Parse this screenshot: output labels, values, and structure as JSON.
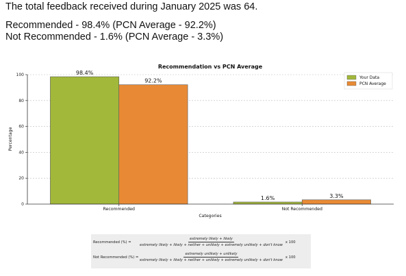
{
  "summary": {
    "line1": "The total feedback received during January 2025 was 64.",
    "line2": "Recommended - 98.4%  (PCN Average - 92.2%)",
    "line3": "Not Recommended - 1.6%  (PCN Average - 3.3%)"
  },
  "chart_data": {
    "type": "bar",
    "title": "Recommendation vs PCN Average",
    "xlabel": "Categories",
    "ylabel": "Percentage",
    "categories": [
      "Recommended",
      "Not Recommended"
    ],
    "series": [
      {
        "name": "Your Data",
        "values": [
          98.4,
          1.6
        ],
        "labels": [
          "98.4%",
          "1.6%"
        ],
        "color": "#a2b83a"
      },
      {
        "name": "PCN Average",
        "values": [
          92.2,
          3.3
        ],
        "labels": [
          "92.2%",
          "3.3%"
        ],
        "color": "#e88a35"
      }
    ],
    "ylim": [
      0,
      100
    ],
    "yticks": [
      0,
      20,
      40,
      60,
      80,
      100
    ],
    "grid": true,
    "legend": "top-right"
  },
  "formulas": {
    "recommended_label": "Recommended (%) =",
    "recommended_num": "extremely likely + likely",
    "recommended_den": "extremely likely + likely + neither + unlikely + extremely unlikely + don't know",
    "not_recommended_label": "Not Recommended (%) =",
    "not_recommended_num": "extremely unlikely + unlikely",
    "not_recommended_den": "extremely likely + likely + neither + unlikely + extremely unlikely + don't know",
    "multiplier": "x 100"
  }
}
